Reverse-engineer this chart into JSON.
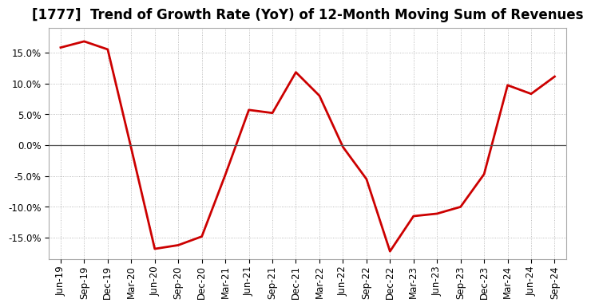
{
  "title": "[1777]  Trend of Growth Rate (YoY) of 12-Month Moving Sum of Revenues",
  "x_labels": [
    "Jun-19",
    "Sep-19",
    "Dec-19",
    "Mar-20",
    "Jun-20",
    "Sep-20",
    "Dec-20",
    "Mar-21",
    "Jun-21",
    "Sep-21",
    "Dec-21",
    "Mar-22",
    "Jun-22",
    "Sep-22",
    "Dec-22",
    "Mar-23",
    "Jun-23",
    "Sep-23",
    "Dec-23",
    "Mar-24",
    "Jun-24",
    "Sep-24"
  ],
  "y_values": [
    0.158,
    0.168,
    0.155,
    -0.005,
    -0.168,
    -0.162,
    -0.148,
    -0.048,
    0.057,
    0.052,
    0.118,
    0.08,
    -0.003,
    -0.055,
    -0.172,
    -0.115,
    -0.111,
    -0.1,
    -0.047,
    0.097,
    0.083,
    0.111
  ],
  "line_color": "#cc0000",
  "line_width": 2.0,
  "ylim": [
    -0.185,
    0.19
  ],
  "yticks": [
    -0.15,
    -0.1,
    -0.05,
    0.0,
    0.05,
    0.1,
    0.15
  ],
  "background_color": "#ffffff",
  "plot_bg_color": "#ffffff",
  "grid_color": "#aaaaaa",
  "title_fontsize": 12,
  "tick_fontsize": 8.5
}
